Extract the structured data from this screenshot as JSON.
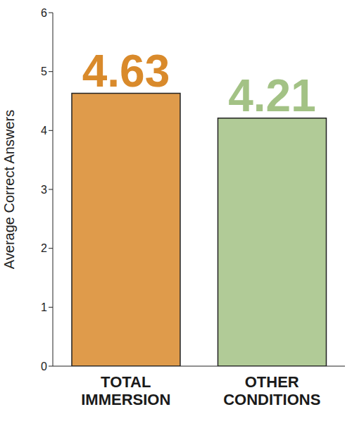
{
  "chart_data": {
    "type": "bar",
    "categories": [
      "TOTAL IMMERSION",
      "OTHER CONDITIONS"
    ],
    "values": [
      4.63,
      4.21
    ],
    "colors": [
      "#d98a2b",
      "#a3c285"
    ],
    "ylabel": "Average Correct Answers",
    "ylim": [
      0,
      6
    ],
    "yticks": [
      0,
      1,
      2,
      3,
      4,
      5,
      6
    ],
    "data_labels": true,
    "grid": false
  }
}
